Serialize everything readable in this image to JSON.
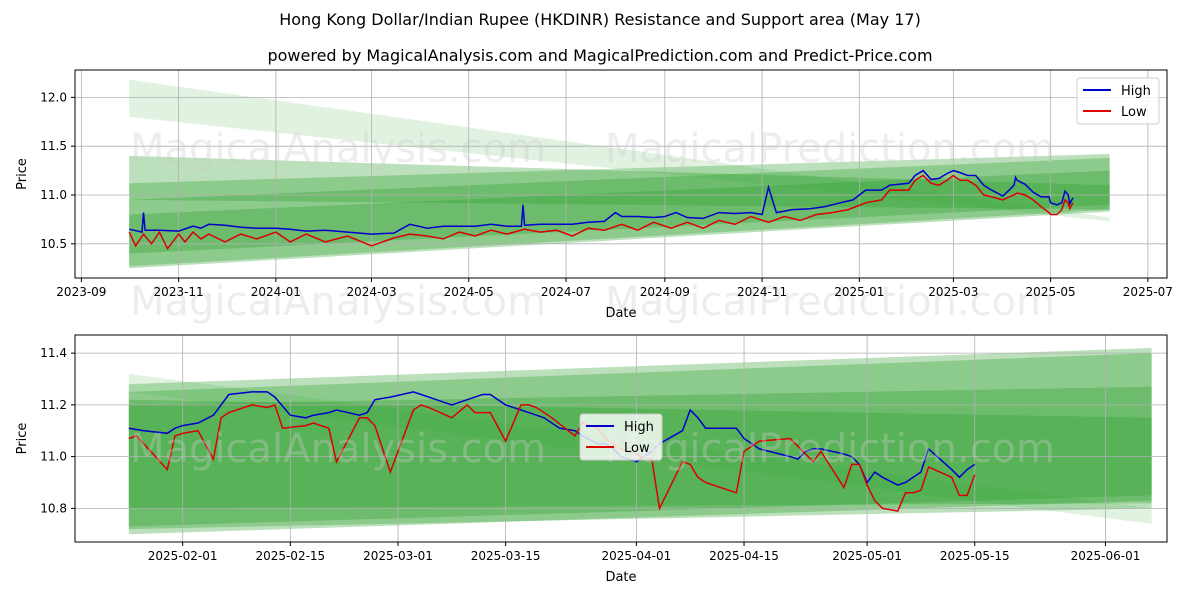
{
  "title": "Hong Kong Dollar/Indian Rupee (HKDINR) Resistance and Support area (May 17)",
  "subtitle": "powered by MagicalAnalysis.com and MagicalPrediction.com and Predict-Price.com",
  "watermarks": [
    "MagicalAnalysis.com",
    "MagicalPrediction.com"
  ],
  "colors": {
    "high": "#0000cc",
    "low": "#dd0000",
    "band": "#2ca02c"
  },
  "chart_data": [
    {
      "type": "line",
      "xlabel": "Date",
      "ylabel": "Price",
      "xlim": [
        "2023-08-28",
        "2025-07-13"
      ],
      "ylim": [
        10.15,
        12.28
      ],
      "x_ticks": [
        "2023-09",
        "2023-11",
        "2024-01",
        "2024-03",
        "2024-05",
        "2024-07",
        "2024-09",
        "2024-11",
        "2025-01",
        "2025-03",
        "2025-05",
        "2025-07"
      ],
      "y_ticks": [
        10.5,
        11.0,
        11.5,
        12.0
      ],
      "y_tick_labels": [
        "10.5",
        "11.0",
        "11.5",
        "12.0"
      ],
      "grid": true,
      "legend": "top-right",
      "bands": [
        {
          "x": [
            "2023-10-01",
            "2025-06-07"
          ],
          "upper": [
            12.18,
            10.77
          ],
          "lower": [
            11.8,
            10.73
          ]
        },
        {
          "x": [
            "2023-10-01",
            "2025-06-07"
          ],
          "upper": [
            11.4,
            11.1
          ],
          "lower": [
            10.95,
            10.85
          ]
        },
        {
          "x": [
            "2023-10-01",
            "2025-06-07"
          ],
          "upper": [
            11.12,
            11.42
          ],
          "lower": [
            10.27,
            10.85
          ]
        },
        {
          "x": [
            "2023-10-01",
            "2025-06-07"
          ],
          "upper": [
            10.95,
            11.38
          ],
          "lower": [
            10.4,
            10.9
          ]
        },
        {
          "x": [
            "2023-10-01",
            "2025-06-07"
          ],
          "upper": [
            10.8,
            11.25
          ],
          "lower": [
            10.25,
            10.83
          ]
        }
      ],
      "series": [
        {
          "name": "High",
          "x": [
            "2023-10-01",
            "2023-10-09",
            "2023-10-10",
            "2023-10-11",
            "2023-10-20",
            "2023-11-01",
            "2023-11-10",
            "2023-11-15",
            "2023-11-20",
            "2023-11-30",
            "2023-12-10",
            "2023-12-20",
            "2024-01-01",
            "2024-01-10",
            "2024-01-20",
            "2024-02-01",
            "2024-02-15",
            "2024-03-01",
            "2024-03-15",
            "2024-03-25",
            "2024-04-05",
            "2024-04-15",
            "2024-04-25",
            "2024-05-05",
            "2024-05-15",
            "2024-05-25",
            "2024-06-03",
            "2024-06-04",
            "2024-06-05",
            "2024-06-15",
            "2024-06-25",
            "2024-07-05",
            "2024-07-15",
            "2024-07-25",
            "2024-08-01",
            "2024-08-05",
            "2024-08-15",
            "2024-08-25",
            "2024-09-01",
            "2024-09-08",
            "2024-09-15",
            "2024-09-25",
            "2024-10-05",
            "2024-10-15",
            "2024-10-25",
            "2024-11-01",
            "2024-11-05",
            "2024-11-10",
            "2024-11-20",
            "2024-12-01",
            "2024-12-10",
            "2024-12-20",
            "2024-12-28",
            "2025-01-05",
            "2025-01-15",
            "2025-01-20",
            "2025-02-01",
            "2025-02-05",
            "2025-02-10",
            "2025-02-15",
            "2025-02-20",
            "2025-02-25",
            "2025-03-01",
            "2025-03-05",
            "2025-03-10",
            "2025-03-15",
            "2025-03-20",
            "2025-03-25",
            "2025-04-01",
            "2025-04-05",
            "2025-04-08",
            "2025-04-09",
            "2025-04-10",
            "2025-04-15",
            "2025-04-20",
            "2025-04-25",
            "2025-04-30",
            "2025-05-01",
            "2025-05-05",
            "2025-05-08",
            "2025-05-10",
            "2025-05-12",
            "2025-05-13",
            "2025-05-15"
          ],
          "y": [
            10.65,
            10.62,
            10.82,
            10.64,
            10.64,
            10.63,
            10.68,
            10.66,
            10.7,
            10.69,
            10.67,
            10.66,
            10.66,
            10.65,
            10.63,
            10.64,
            10.62,
            10.6,
            10.61,
            10.7,
            10.66,
            10.68,
            10.68,
            10.68,
            10.7,
            10.68,
            10.68,
            10.9,
            10.69,
            10.7,
            10.7,
            10.7,
            10.72,
            10.73,
            10.82,
            10.78,
            10.78,
            10.77,
            10.78,
            10.82,
            10.77,
            10.76,
            10.82,
            10.81,
            10.82,
            10.8,
            11.08,
            10.82,
            10.85,
            10.86,
            10.88,
            10.92,
            10.95,
            11.05,
            11.05,
            11.1,
            11.12,
            11.2,
            11.25,
            11.16,
            11.17,
            11.22,
            11.25,
            11.23,
            11.2,
            11.2,
            11.1,
            11.05,
            10.99,
            11.05,
            11.1,
            11.18,
            11.15,
            11.11,
            11.03,
            10.98,
            10.98,
            10.92,
            10.9,
            10.92,
            11.04,
            11.0,
            10.91,
            10.97
          ]
        },
        {
          "name": "Low",
          "x": [
            "2023-10-01",
            "2023-10-05",
            "2023-10-10",
            "2023-10-15",
            "2023-10-20",
            "2023-10-25",
            "2023-11-01",
            "2023-11-05",
            "2023-11-10",
            "2023-11-15",
            "2023-11-20",
            "2023-11-30",
            "2023-12-10",
            "2023-12-20",
            "2024-01-01",
            "2024-01-10",
            "2024-01-20",
            "2024-02-01",
            "2024-02-15",
            "2024-03-01",
            "2024-03-15",
            "2024-03-25",
            "2024-04-05",
            "2024-04-15",
            "2024-04-25",
            "2024-05-05",
            "2024-05-15",
            "2024-05-25",
            "2024-06-05",
            "2024-06-15",
            "2024-06-25",
            "2024-07-05",
            "2024-07-15",
            "2024-07-25",
            "2024-08-05",
            "2024-08-15",
            "2024-08-25",
            "2024-09-05",
            "2024-09-15",
            "2024-09-25",
            "2024-10-05",
            "2024-10-15",
            "2024-10-25",
            "2024-11-05",
            "2024-11-15",
            "2024-11-25",
            "2024-12-05",
            "2024-12-15",
            "2024-12-25",
            "2025-01-05",
            "2025-01-15",
            "2025-01-20",
            "2025-02-01",
            "2025-02-05",
            "2025-02-10",
            "2025-02-15",
            "2025-02-20",
            "2025-02-25",
            "2025-03-01",
            "2025-03-05",
            "2025-03-10",
            "2025-03-15",
            "2025-03-20",
            "2025-03-25",
            "2025-04-01",
            "2025-04-05",
            "2025-04-08",
            "2025-04-10",
            "2025-04-15",
            "2025-04-20",
            "2025-04-25",
            "2025-04-30",
            "2025-05-01",
            "2025-05-05",
            "2025-05-08",
            "2025-05-10",
            "2025-05-12",
            "2025-05-13",
            "2025-05-15"
          ],
          "y": [
            10.62,
            10.48,
            10.6,
            10.5,
            10.62,
            10.45,
            10.6,
            10.52,
            10.62,
            10.55,
            10.6,
            10.52,
            10.6,
            10.55,
            10.62,
            10.52,
            10.6,
            10.52,
            10.58,
            10.48,
            10.56,
            10.6,
            10.58,
            10.55,
            10.62,
            10.58,
            10.64,
            10.6,
            10.65,
            10.62,
            10.64,
            10.58,
            10.66,
            10.64,
            10.7,
            10.64,
            10.72,
            10.66,
            10.72,
            10.66,
            10.74,
            10.7,
            10.78,
            10.72,
            10.78,
            10.74,
            10.8,
            10.82,
            10.85,
            10.92,
            10.95,
            11.05,
            11.05,
            11.15,
            11.2,
            11.12,
            11.1,
            11.15,
            11.2,
            11.15,
            11.15,
            11.1,
            11.0,
            10.98,
            10.95,
            10.98,
            11.0,
            11.02,
            11.0,
            10.95,
            10.88,
            10.82,
            10.8,
            10.8,
            10.85,
            10.95,
            10.92,
            10.86,
            10.92
          ]
        }
      ]
    },
    {
      "type": "line",
      "xlabel": "Date",
      "ylabel": "Price",
      "xlim": [
        "2025-01-18",
        "2025-06-09"
      ],
      "ylim": [
        10.67,
        11.47
      ],
      "x_ticks": [
        "2025-02-01",
        "2025-02-15",
        "2025-03-01",
        "2025-03-15",
        "2025-04-01",
        "2025-04-15",
        "2025-05-01",
        "2025-05-15",
        "2025-06-01"
      ],
      "y_ticks": [
        10.8,
        11.0,
        11.2,
        11.4
      ],
      "y_tick_labels": [
        "10.8",
        "11.0",
        "11.2",
        "11.4"
      ],
      "grid": true,
      "legend": "center",
      "bands": [
        {
          "x": [
            "2025-01-25",
            "2025-06-07"
          ],
          "upper": [
            11.32,
            10.8
          ],
          "lower": [
            11.25,
            10.74
          ]
        },
        {
          "x": [
            "2025-01-25",
            "2025-06-07"
          ],
          "upper": [
            11.28,
            11.42
          ],
          "lower": [
            10.72,
            10.8
          ]
        },
        {
          "x": [
            "2025-01-25",
            "2025-06-07"
          ],
          "upper": [
            11.25,
            11.4
          ],
          "lower": [
            10.7,
            10.83
          ]
        },
        {
          "x": [
            "2025-01-25",
            "2025-06-07"
          ],
          "upper": [
            11.2,
            11.27
          ],
          "lower": [
            10.73,
            10.85
          ]
        },
        {
          "x": [
            "2025-01-25",
            "2025-06-07"
          ],
          "upper": [
            11.22,
            11.15
          ],
          "lower": [
            10.8,
            10.82
          ]
        }
      ],
      "series": [
        {
          "name": "High",
          "x": [
            "2025-01-25",
            "2025-01-27",
            "2025-01-30",
            "2025-01-31",
            "2025-02-01",
            "2025-02-03",
            "2025-02-05",
            "2025-02-06",
            "2025-02-07",
            "2025-02-10",
            "2025-02-12",
            "2025-02-13",
            "2025-02-15",
            "2025-02-17",
            "2025-02-18",
            "2025-02-20",
            "2025-02-21",
            "2025-02-24",
            "2025-02-25",
            "2025-02-26",
            "2025-02-28",
            "2025-03-03",
            "2025-03-04",
            "2025-03-05",
            "2025-03-08",
            "2025-03-10",
            "2025-03-11",
            "2025-03-12",
            "2025-03-13",
            "2025-03-15",
            "2025-03-17",
            "2025-03-18",
            "2025-03-20",
            "2025-03-22",
            "2025-03-24",
            "2025-03-25",
            "2025-03-27",
            "2025-03-28",
            "2025-03-29",
            "2025-03-30",
            "2025-04-01",
            "2025-04-02",
            "2025-04-03",
            "2025-04-04",
            "2025-04-07",
            "2025-04-08",
            "2025-04-09",
            "2025-04-10",
            "2025-04-11",
            "2025-04-14",
            "2025-04-15",
            "2025-04-17",
            "2025-04-21",
            "2025-04-22",
            "2025-04-23",
            "2025-04-24",
            "2025-04-25",
            "2025-04-28",
            "2025-04-29",
            "2025-04-30",
            "2025-05-01",
            "2025-05-02",
            "2025-05-03",
            "2025-05-05",
            "2025-05-06",
            "2025-05-07",
            "2025-05-08",
            "2025-05-09",
            "2025-05-12",
            "2025-05-13",
            "2025-05-14",
            "2025-05-15"
          ],
          "y": [
            11.11,
            11.1,
            11.09,
            11.11,
            11.12,
            11.13,
            11.16,
            11.2,
            11.24,
            11.25,
            11.25,
            11.23,
            11.16,
            11.15,
            11.16,
            11.17,
            11.18,
            11.16,
            11.17,
            11.22,
            11.23,
            11.25,
            11.24,
            11.23,
            11.2,
            11.22,
            11.23,
            11.24,
            11.24,
            11.2,
            11.18,
            11.17,
            11.15,
            11.11,
            11.1,
            11.08,
            11.05,
            11.05,
            11.03,
            11.0,
            10.98,
            11.0,
            11.02,
            11.05,
            11.1,
            11.18,
            11.15,
            11.11,
            11.11,
            11.11,
            11.07,
            11.03,
            11.0,
            10.99,
            11.02,
            11.03,
            11.03,
            11.01,
            11.0,
            10.97,
            10.9,
            10.94,
            10.92,
            10.89,
            10.9,
            10.92,
            10.94,
            11.03,
            10.95,
            10.92,
            10.95,
            10.97
          ]
        },
        {
          "name": "Low",
          "x": [
            "2025-01-25",
            "2025-01-26",
            "2025-01-30",
            "2025-01-31",
            "2025-02-01",
            "2025-02-03",
            "2025-02-05",
            "2025-02-06",
            "2025-02-07",
            "2025-02-10",
            "2025-02-12",
            "2025-02-13",
            "2025-02-14",
            "2025-02-17",
            "2025-02-18",
            "2025-02-20",
            "2025-02-21",
            "2025-02-24",
            "2025-02-25",
            "2025-02-26",
            "2025-02-28",
            "2025-03-03",
            "2025-03-04",
            "2025-03-05",
            "2025-03-08",
            "2025-03-10",
            "2025-03-11",
            "2025-03-12",
            "2025-03-13",
            "2025-03-15",
            "2025-03-17",
            "2025-03-18",
            "2025-03-19",
            "2025-03-21",
            "2025-03-24",
            "2025-03-25",
            "2025-03-27",
            "2025-03-28",
            "2025-03-29",
            "2025-03-30",
            "2025-04-01",
            "2025-04-02",
            "2025-04-03",
            "2025-04-04",
            "2025-04-07",
            "2025-04-08",
            "2025-04-09",
            "2025-04-10",
            "2025-04-11",
            "2025-04-14",
            "2025-04-15",
            "2025-04-17",
            "2025-04-21",
            "2025-04-22",
            "2025-04-23",
            "2025-04-24",
            "2025-04-25",
            "2025-04-28",
            "2025-04-29",
            "2025-04-30",
            "2025-05-01",
            "2025-05-02",
            "2025-05-03",
            "2025-05-05",
            "2025-05-06",
            "2025-05-07",
            "2025-05-08",
            "2025-05-09",
            "2025-05-12",
            "2025-05-13",
            "2025-05-14",
            "2025-05-15"
          ],
          "y": [
            11.07,
            11.08,
            10.95,
            11.08,
            11.09,
            11.1,
            10.99,
            11.15,
            11.17,
            11.2,
            11.19,
            11.2,
            11.11,
            11.12,
            11.13,
            11.11,
            10.98,
            11.15,
            11.15,
            11.12,
            10.94,
            11.18,
            11.2,
            11.19,
            11.15,
            11.2,
            11.17,
            11.17,
            11.17,
            11.06,
            11.2,
            11.2,
            11.19,
            11.15,
            11.08,
            11.13,
            11.11,
            11.07,
            11.05,
            11.03,
            11.01,
            10.99,
            10.99,
            10.8,
            10.98,
            10.97,
            10.92,
            10.9,
            10.89,
            10.86,
            11.02,
            11.06,
            11.07,
            11.04,
            11.01,
            10.98,
            11.02,
            10.88,
            10.97,
            10.97,
            10.89,
            10.83,
            10.8,
            10.79,
            10.86,
            10.86,
            10.87,
            10.96,
            10.92,
            10.85,
            10.85,
            10.93
          ]
        }
      ]
    }
  ]
}
